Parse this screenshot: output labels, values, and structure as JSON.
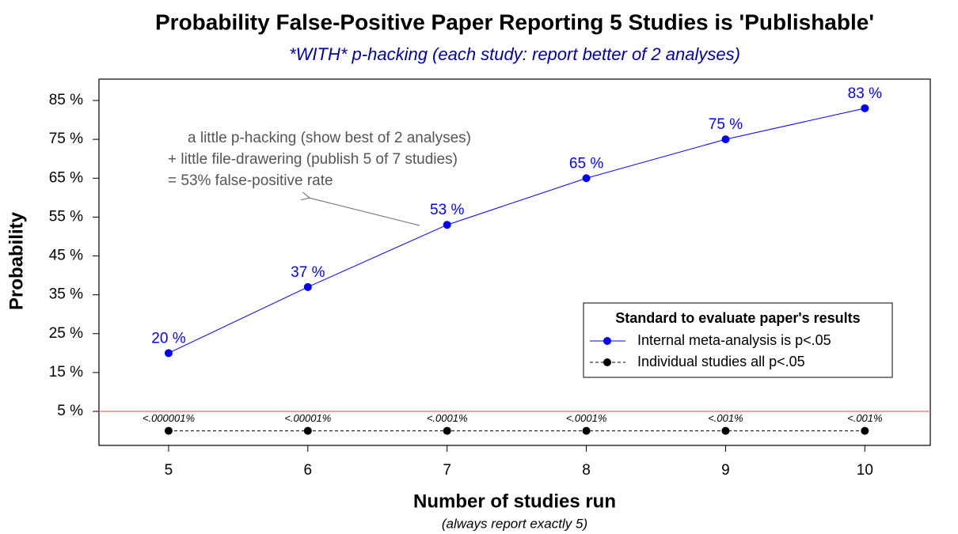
{
  "chart_data": {
    "type": "line",
    "title": "Probability False-Positive Paper Reporting 5 Studies is 'Publishable'",
    "subtitle": "*WITH* p-hacking (each study: report better of 2 analyses)",
    "x_label": "Number of studies run",
    "x_sublabel": "(always report exactly 5)",
    "y_label": "Probability",
    "x": [
      5,
      6,
      7,
      8,
      9,
      10
    ],
    "xlim": [
      4.5,
      10.47
    ],
    "xticks": [
      5,
      6,
      7,
      8,
      9,
      10
    ],
    "ylim": [
      -3.75,
      90.5
    ],
    "yticks": [
      {
        "value": 5,
        "label": "5 %"
      },
      {
        "value": 15,
        "label": "15 %"
      },
      {
        "value": 25,
        "label": "25 %"
      },
      {
        "value": 35,
        "label": "35 %"
      },
      {
        "value": 45,
        "label": "45 %"
      },
      {
        "value": 55,
        "label": "55 %"
      },
      {
        "value": 65,
        "label": "65 %"
      },
      {
        "value": 75,
        "label": "75 %"
      },
      {
        "value": 85,
        "label": "85 %"
      }
    ],
    "hline": {
      "value": 5,
      "color": "#f08080"
    },
    "series": [
      {
        "name": "Internal meta-analysis is p<.05",
        "color": "#0000ff",
        "linestyle": "solid",
        "values": [
          20,
          37,
          53,
          65,
          75,
          83
        ],
        "value_labels": [
          "20 %",
          "37 %",
          "53 %",
          "65 %",
          "75 %",
          "83 %"
        ]
      },
      {
        "name": "Individual studies all p<.05",
        "color": "#000000",
        "linestyle": "dashed",
        "values": [
          1e-06,
          1e-05,
          0.0001,
          0.0001,
          0.001,
          0.001
        ],
        "value_labels": [
          "<.000001%",
          "<.00001%",
          "<.0001%",
          "<.0001%",
          "<.001%",
          "<.001%"
        ]
      }
    ],
    "legend": {
      "title": "Standard to evaluate paper's results",
      "position": "right"
    },
    "annotation": [
      "a little p-hacking (show best of 2 analyses)",
      "+ little file-drawering (publish 5 of 7 studies)",
      "= 53% false-positive rate"
    ]
  }
}
